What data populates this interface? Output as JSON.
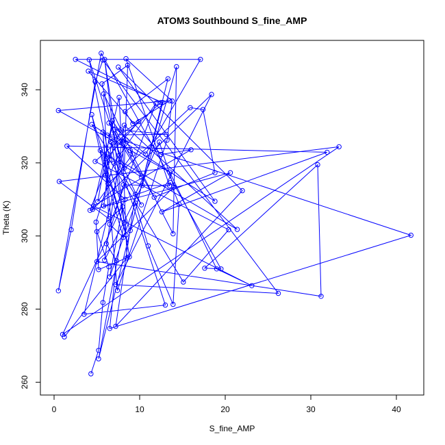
{
  "chart_data": {
    "type": "line",
    "title": "ATOM3 Southbound S_fine_AMP",
    "xlabel": "S_fine_AMP",
    "ylabel": "Theta (K)",
    "xlim": [
      0,
      42
    ],
    "ylim": [
      260,
      350
    ],
    "x_ticks": [
      0,
      10,
      20,
      30,
      40
    ],
    "y_ticks": [
      260,
      280,
      300,
      320,
      340
    ],
    "grid": false,
    "legend": "none",
    "series_color": "#0000ff",
    "x": [
      4.3,
      5.2,
      5.7,
      6.4,
      5.0,
      8.0,
      6.5,
      9.5,
      11.0,
      13.9,
      14.6,
      13.6,
      5.8,
      6.7,
      8.8,
      5.2,
      4.9,
      7.0,
      11.9,
      6.5,
      8.1,
      6.0,
      4.4,
      8.4,
      5.4,
      10.2,
      6.4,
      10.7,
      17.1,
      2.5,
      12.5,
      4.8,
      20.4,
      15.1,
      6.5,
      4.1,
      8.2,
      8.6,
      5.6,
      7.6,
      5.9,
      8.2,
      5.2,
      13.3,
      8.3,
      9.2,
      13.5,
      0.5,
      13.5,
      19.0,
      23.1,
      4.6,
      16.0,
      12.5,
      4.0,
      12.7,
      8.9,
      6.1,
      9.9,
      6.6,
      10.2,
      4.4,
      8.9,
      13.9,
      14.3,
      10.3,
      5.9,
      8.2,
      21.4,
      7.5,
      13.0,
      3.5,
      8.4,
      6.8,
      5.1,
      9.2,
      5.8,
      6.3,
      15.9,
      17.4,
      18.8,
      11.7,
      7.1,
      13.1,
      6.2,
      41.7,
      6.5,
      7.3,
      6.1,
      8.1,
      13.5,
      8.4,
      13.8,
      13.2,
      7.4,
      5.7,
      6.4,
      0.6,
      33.3,
      1.0,
      8.3,
      1.5,
      31.9,
      12.6,
      20.6,
      4.2,
      7.8,
      7.6,
      4.5,
      18.4,
      7.2,
      26.2,
      5.7,
      4.8,
      2.0,
      0.5,
      5.5,
      19.5,
      17.6,
      30.8,
      31.2,
      5.0,
      14.0,
      12.3,
      9.5,
      7.2,
      22.0,
      7.5,
      18.8,
      8.0,
      8.5,
      1.2
    ],
    "y": [
      262.3,
      268.7,
      281.8,
      291.6,
      301.2,
      308.0,
      288.8,
      309.0,
      297.3,
      281.3,
      308.7,
      314.6,
      308.2,
      325.6,
      294.3,
      290.8,
      303.8,
      319.9,
      336.3,
      303.2,
      299.6,
      316.6,
      333.2,
      300.3,
      323.4,
      316.1,
      330.9,
      322.4,
      348.3,
      348.3,
      336.5,
      320.4,
      301.7,
      287.4,
      320.8,
      348.2,
      318.6,
      346.7,
      341.6,
      322.0,
      348.3,
      303.6,
      266.4,
      343.0,
      334.0,
      330.7,
      337.0,
      334.3,
      317.5,
      291.0,
      286.4,
      308.2,
      323.6,
      322.3,
      345.1,
      336.5,
      301.5,
      321.2,
      331.3,
      325.9,
      308.5,
      330.5,
      323.4,
      300.6,
      346.3,
      313.8,
      293.4,
      330.3,
      301.8,
      320.8,
      281.1,
      278.6,
      326.3,
      331.5,
      309.4,
      322.4,
      338.9,
      314.3,
      335.1,
      334.6,
      317.3,
      310.6,
      329.2,
      327.8,
      327.6,
      300.2,
      274.7,
      293.2,
      297.9,
      314.0,
      313.7,
      348.5,
      336.9,
      326.2,
      285.1,
      328.4,
      304.7,
      314.9,
      324.4,
      273.1,
      310.0,
      324.6,
      322.9,
      306.6,
      317.3,
      307.0,
      329.0,
      337.9,
      307.3,
      338.7,
      286.7,
      284.3,
      348.1,
      342.2,
      301.7,
      285.0,
      350.0,
      291.0,
      291.2,
      319.5,
      283.5,
      293.0,
      313.4,
      325.7,
      311.4,
      275.3,
      312.4,
      346.2,
      309.5,
      326.0,
      294.0,
      272.4
    ]
  }
}
